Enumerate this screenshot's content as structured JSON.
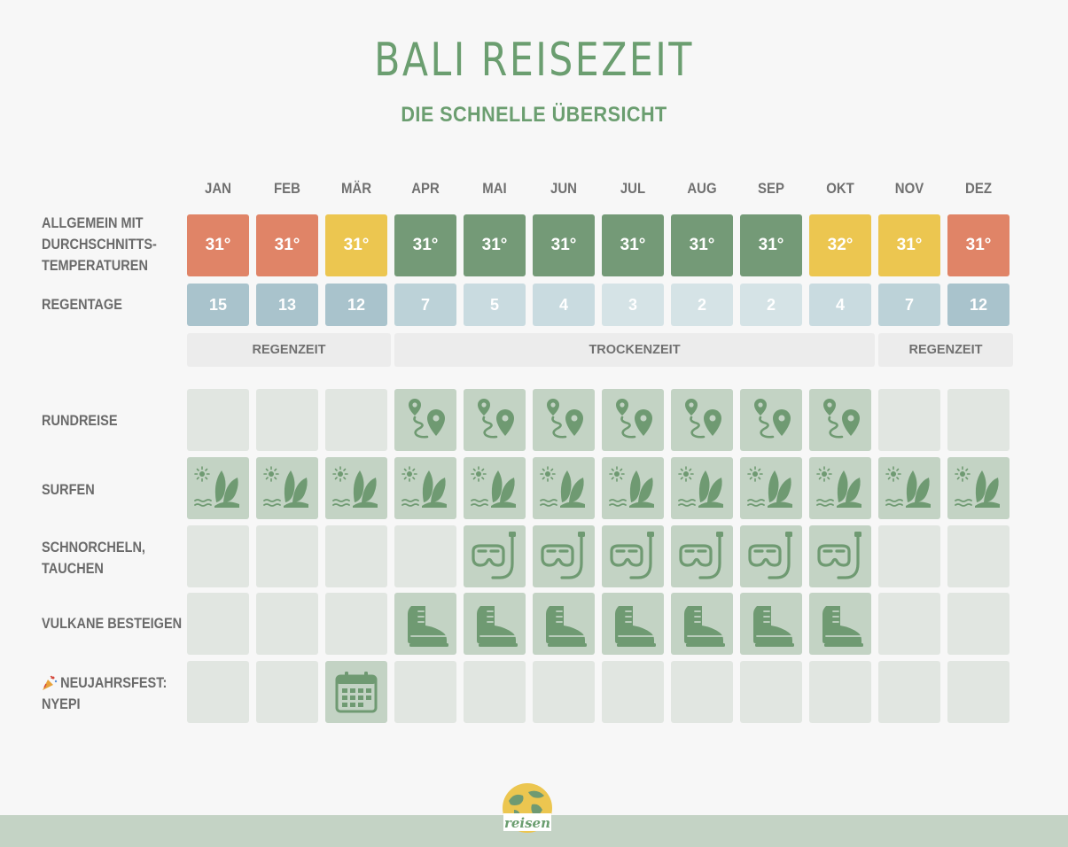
{
  "header": {
    "title": "BALI REISEZEIT",
    "subtitle": "DIE SCHNELLE ÜBERSICHT"
  },
  "months": [
    "JAN",
    "FEB",
    "MÄR",
    "APR",
    "MAI",
    "JUN",
    "JUL",
    "AUG",
    "SEP",
    "OKT",
    "NOV",
    "DEZ"
  ],
  "labels": {
    "temperature": "ALLGEMEIN MIT DURCHSCHNITTS-TEMPERATUREN",
    "rain": "REGENTAGE",
    "rundreise": "RUNDREISE",
    "surfen": "SURFEN",
    "schnorcheln": "SCHNORCHELN, TAUCHEN",
    "vulkane": "VULKANE BESTEIGEN",
    "nyepi": "NEUJAHRSFEST: NYEPI"
  },
  "temperatures": [
    "31°",
    "31°",
    "31°",
    "31°",
    "31°",
    "31°",
    "31°",
    "31°",
    "31°",
    "32°",
    "31°",
    "31°"
  ],
  "temperature_ratings": [
    "bad",
    "bad",
    "medium",
    "good",
    "good",
    "good",
    "good",
    "good",
    "good",
    "medium",
    "medium",
    "bad"
  ],
  "rain_days": [
    "15",
    "13",
    "12",
    "7",
    "5",
    "4",
    "3",
    "2",
    "2",
    "4",
    "7",
    "12"
  ],
  "seasons": [
    {
      "label": "REGENZEIT",
      "from": 0,
      "to": 2
    },
    {
      "label": "TROCKENZEIT",
      "from": 3,
      "to": 9
    },
    {
      "label": "REGENZEIT",
      "from": 10,
      "to": 11
    }
  ],
  "activities": {
    "rundreise": [
      false,
      false,
      false,
      true,
      true,
      true,
      true,
      true,
      true,
      true,
      false,
      false
    ],
    "surfen": [
      true,
      true,
      true,
      true,
      true,
      true,
      true,
      true,
      true,
      true,
      true,
      true
    ],
    "schnorcheln": [
      false,
      false,
      false,
      false,
      true,
      true,
      true,
      true,
      true,
      true,
      false,
      false
    ],
    "vulkane": [
      false,
      false,
      false,
      true,
      true,
      true,
      true,
      true,
      true,
      true,
      false,
      false
    ],
    "nyepi": [
      false,
      false,
      true,
      false,
      false,
      false,
      false,
      false,
      false,
      false,
      false,
      false
    ]
  },
  "activity_icons": {
    "rundreise": "route-pin-icon",
    "surfen": "surfboard-beach-icon",
    "schnorcheln": "snorkel-mask-icon",
    "vulkane": "hiking-boot-icon",
    "nyepi": "calendar-icon"
  },
  "colors": {
    "good": "#749a77",
    "medium": "#ecc650",
    "bad": "#e08467",
    "icon": "#6f9a72",
    "accent": "#6b9e70"
  },
  "logo": {
    "text": "reisen"
  }
}
